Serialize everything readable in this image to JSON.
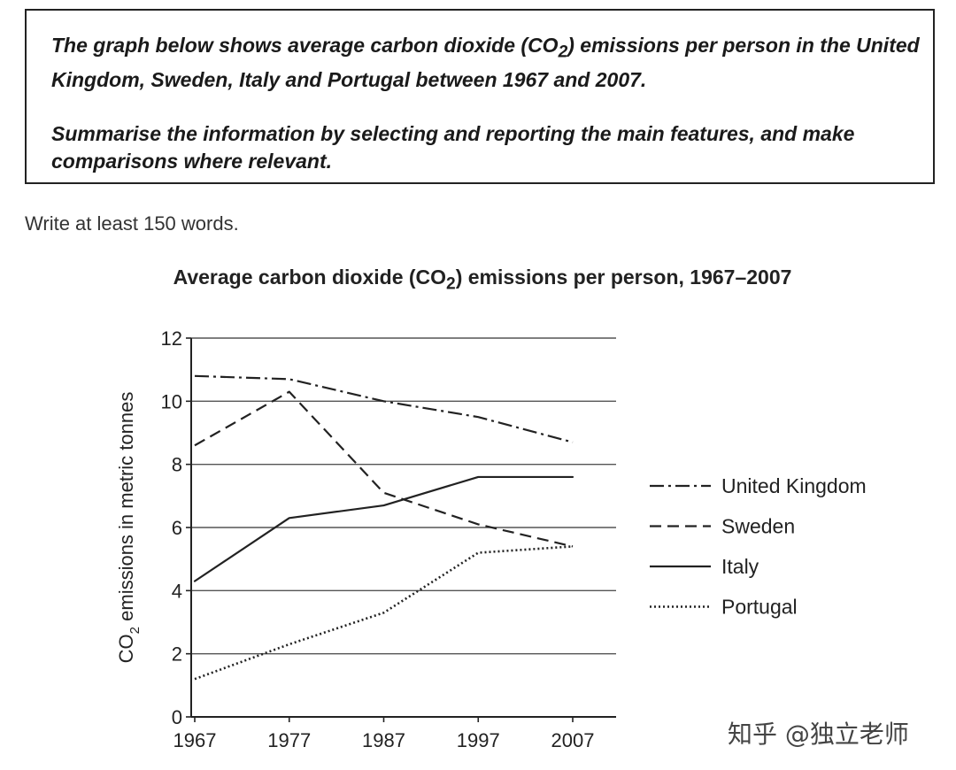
{
  "prompt": {
    "paragraph1_pre": "The graph below shows average carbon dioxide (CO",
    "paragraph1_sub": "2",
    "paragraph1_post": ") emissions per person in the United Kingdom, Sweden, Italy and Portugal between 1967 and 2007.",
    "paragraph2": "Summarise the information by selecting and reporting the main features, and make comparisons where relevant."
  },
  "instruction": "Write at least 150 words.",
  "watermark": "知乎 @独立老师",
  "chart_data": {
    "type": "line",
    "title_pre": "Average carbon dioxide (CO",
    "title_sub": "2",
    "title_post": ") emissions per person, 1967–2007",
    "xlabel": "",
    "ylabel_pre": "CO",
    "ylabel_sub": "2",
    "ylabel_post": " emissions in metric tonnes",
    "x": [
      "1967",
      "1977",
      "1987",
      "1997",
      "2007"
    ],
    "ylim": [
      0,
      12
    ],
    "yticks": [
      "0",
      "2",
      "4",
      "6",
      "8",
      "10",
      "12"
    ],
    "grid": true,
    "legend_position": "right",
    "series": [
      {
        "name": "United Kingdom",
        "style": "dashdot",
        "values": [
          10.8,
          10.7,
          10.0,
          9.5,
          8.7
        ]
      },
      {
        "name": "Sweden",
        "style": "dashed",
        "values": [
          8.6,
          10.3,
          7.1,
          6.1,
          5.4
        ]
      },
      {
        "name": "Italy",
        "style": "solid",
        "values": [
          4.3,
          6.3,
          6.7,
          7.6,
          7.6
        ]
      },
      {
        "name": "Portugal",
        "style": "dotted",
        "values": [
          1.2,
          2.3,
          3.3,
          5.2,
          5.4
        ]
      }
    ]
  }
}
